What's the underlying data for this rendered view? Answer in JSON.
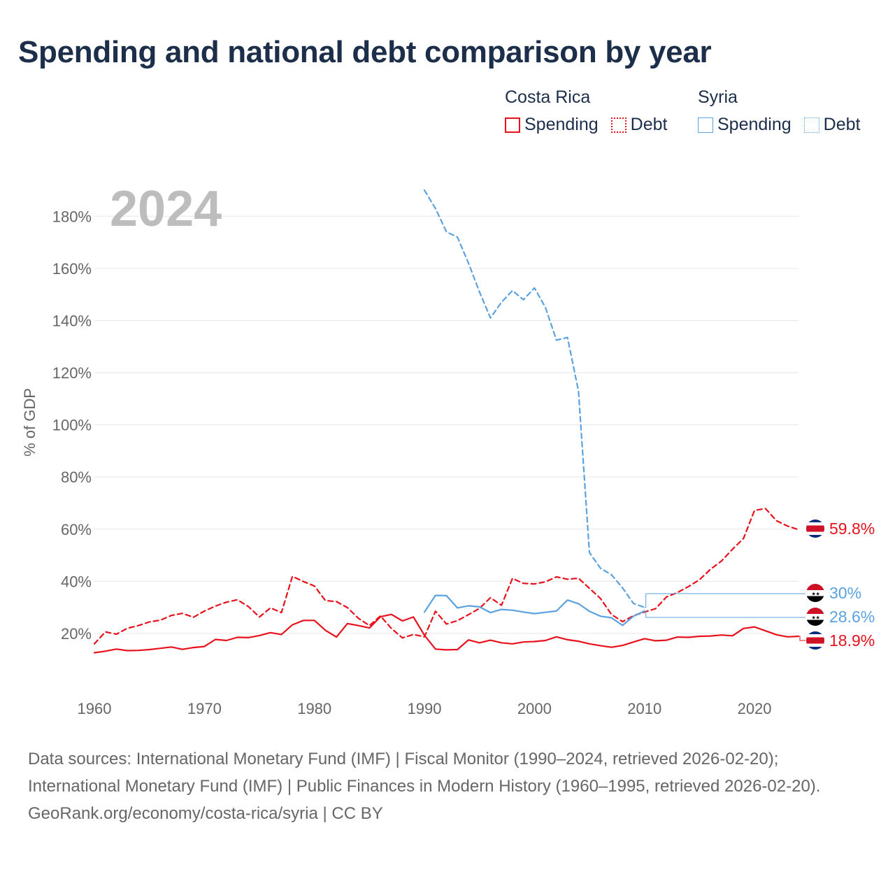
{
  "title": "Spending and national debt comparison by year",
  "legend": {
    "groups": [
      {
        "country": "Costa Rica",
        "color": "#e8111c",
        "items": [
          {
            "label": "Spending",
            "style": "solid"
          },
          {
            "label": "Debt",
            "style": "dotted"
          }
        ]
      },
      {
        "country": "Syria",
        "color": "#5aa2e0",
        "items": [
          {
            "label": "Spending",
            "style": "solid"
          },
          {
            "label": "Debt",
            "style": "dotted"
          }
        ]
      }
    ]
  },
  "footer": {
    "sources": "Data sources: International Monetary Fund (IMF) | Fiscal Monitor (1990–2024, retrieved 2026-02-20); International Monetary Fund (IMF) | Public Finances in Modern History (1960–1995, retrieved 2026-02-20).",
    "credit": "GeoRank.org/economy/costa-rica/syria | CC BY"
  },
  "chart_data": {
    "type": "line",
    "title": "Spending and national debt comparison by year",
    "year_label": "2024",
    "xlabel": "",
    "ylabel": "% of GDP",
    "xlim": [
      1960,
      2024
    ],
    "ylim": [
      0,
      190
    ],
    "x_ticks": [
      1960,
      1970,
      1980,
      1990,
      2000,
      2010,
      2020
    ],
    "y_ticks": [
      20,
      40,
      60,
      80,
      100,
      120,
      140,
      160,
      180
    ],
    "y_tick_labels": [
      "20%",
      "40%",
      "60%",
      "80%",
      "100%",
      "120%",
      "140%",
      "160%",
      "180%"
    ],
    "grid": true,
    "series": [
      {
        "name": "Costa Rica Spending",
        "country": "Costa Rica",
        "metric": "Spending",
        "color": "#e8111c",
        "dash": "solid",
        "start": 1960,
        "values": [
          12.6,
          13.2,
          14.0,
          13.4,
          13.5,
          13.8,
          14.3,
          14.8,
          13.9,
          14.6,
          15.0,
          17.7,
          17.3,
          18.5,
          18.4,
          19.2,
          20.3,
          19.6,
          23.3,
          25.0,
          25.0,
          21.2,
          18.6,
          23.8,
          23.0,
          22.1,
          26.4,
          27.3,
          24.8,
          26.3,
          19.3,
          14.0,
          13.7,
          13.8,
          17.5,
          16.4,
          17.4,
          16.4,
          16.0,
          16.7,
          16.9,
          17.3,
          18.7,
          17.6,
          17.0,
          16.0,
          15.3,
          14.7,
          15.4,
          16.7,
          18.0,
          17.2,
          17.4,
          18.6,
          18.5,
          18.9,
          19.0,
          19.4,
          19.1,
          21.9,
          22.5,
          21.0,
          19.5,
          18.7,
          18.9
        ],
        "end_label": "18.9%"
      },
      {
        "name": "Costa Rica Debt",
        "country": "Costa Rica",
        "metric": "Debt",
        "color": "#e8111c",
        "dash": "dashed",
        "start": 1960,
        "values": [
          16.0,
          20.6,
          19.7,
          22.0,
          23.0,
          24.4,
          25.1,
          26.9,
          27.7,
          26.2,
          28.6,
          30.5,
          32.0,
          32.9,
          30.3,
          26.3,
          29.8,
          28.0,
          41.9,
          39.9,
          38.2,
          32.6,
          32.2,
          29.9,
          25.8,
          23.0,
          26.7,
          21.9,
          18.3,
          19.6,
          18.7,
          28.5,
          23.6,
          24.9,
          27.2,
          29.6,
          33.7,
          30.8,
          41.1,
          39.2,
          39.0,
          39.8,
          41.7,
          40.8,
          41.2,
          37.3,
          33.4,
          27.3,
          24.5,
          26.8,
          28.2,
          29.5,
          34.0,
          35.7,
          38.0,
          40.6,
          44.6,
          47.8,
          52.3,
          56.4,
          67.2,
          67.9,
          63.2,
          61.2,
          59.8
        ],
        "end_label": "59.8%"
      },
      {
        "name": "Syria Spending",
        "country": "Syria",
        "metric": "Spending",
        "color": "#5aa2e0",
        "dash": "solid",
        "start": 1990,
        "values": [
          28.2,
          34.6,
          34.5,
          29.8,
          30.6,
          30.2,
          28.0,
          29.2,
          28.9,
          28.2,
          27.6,
          28.1,
          28.6,
          32.8,
          31.4,
          28.5,
          26.6,
          26.0,
          23.1,
          26.6,
          28.6
        ],
        "end_label": "28.6%"
      },
      {
        "name": "Syria Debt",
        "country": "Syria",
        "metric": "Debt",
        "color": "#5aa2e0",
        "dash": "dashed",
        "start": 1990,
        "values": [
          190.0,
          183.0,
          174.0,
          172.0,
          162.0,
          151.0,
          141.0,
          147.0,
          151.5,
          148.0,
          152.5,
          145.0,
          132.5,
          133.5,
          113.0,
          51.0,
          45.0,
          42.5,
          37.5,
          31.5,
          30.0
        ],
        "end_label": "30%"
      }
    ]
  }
}
